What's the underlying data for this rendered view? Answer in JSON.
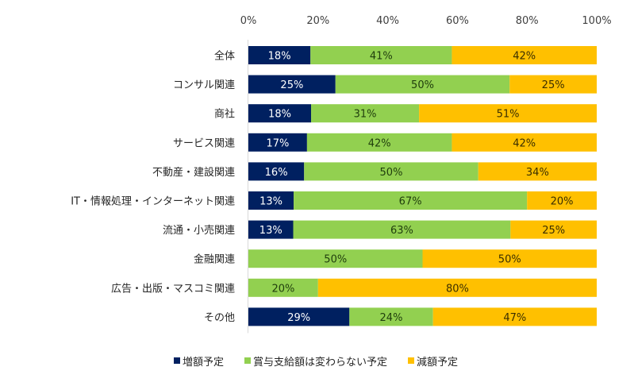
{
  "chart_data": {
    "type": "bar",
    "orientation": "horizontal",
    "stacked": "percent",
    "title": "",
    "xlabel": "",
    "ylabel": "",
    "xlim": [
      0,
      100
    ],
    "x_ticks": [
      "0%",
      "20%",
      "40%",
      "60%",
      "80%",
      "100%"
    ],
    "grid": false,
    "legend_position": "bottom",
    "categories": [
      "全体",
      "コンサル関連",
      "商社",
      "サービス関連",
      "不動産・建設関連",
      "IT・情報処理・インターネット関連",
      "流通・小売関連",
      "金融関連",
      "広告・出版・マスコミ関連",
      "その他"
    ],
    "series": [
      {
        "name": "増額予定",
        "color": "#002060",
        "label_color": "#ffffff",
        "values": [
          18,
          25,
          18,
          17,
          16,
          13,
          13,
          0,
          0,
          29
        ]
      },
      {
        "name": "賞与支給額は変わらない予定",
        "color": "#92D050",
        "label_color": "#1f3d0c",
        "values": [
          41,
          50,
          31,
          42,
          50,
          67,
          63,
          50,
          20,
          24
        ]
      },
      {
        "name": "減額予定",
        "color": "#FFC000",
        "label_color": "#3a2e00",
        "values": [
          42,
          25,
          51,
          42,
          34,
          20,
          25,
          50,
          80,
          47
        ]
      }
    ],
    "value_suffix": "%"
  }
}
